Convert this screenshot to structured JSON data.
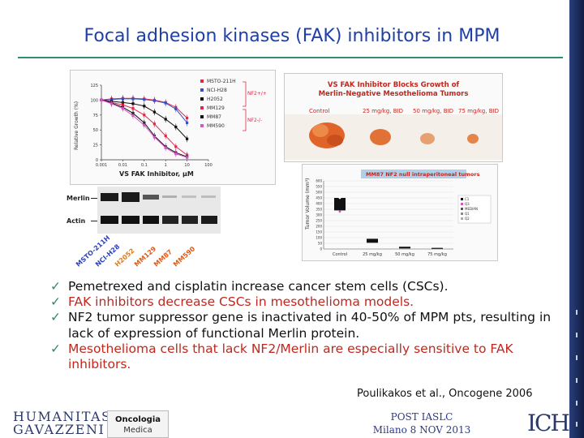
{
  "slide": {
    "title": "Focal adhesion kinases (FAK) inhibitors in MPM",
    "citation": "Poulikakos et al., Oncogene 2006"
  },
  "dose_response": {
    "y_axis_label": "Relative Growth (%)",
    "x_axis_label": "VS FAK Inhibitor, μM",
    "y_ticks": [
      "125",
      "100",
      "75",
      "50",
      "25",
      "0"
    ],
    "x_ticks": [
      "0.001",
      "0.01",
      "0.1",
      "1",
      "10",
      "100"
    ],
    "legend": [
      {
        "name": "MSTO-211H",
        "color": "#e0294a"
      },
      {
        "name": "NCI-H28",
        "color": "#3a4fc7"
      },
      {
        "name": "H2052",
        "color": "#111111"
      },
      {
        "name": "MM129",
        "color": "#e0294a"
      },
      {
        "name": "MM87",
        "color": "#111111"
      },
      {
        "name": "MM590",
        "color": "#d455c8"
      }
    ],
    "group_labels": [
      "NF2+/+",
      "NF2-/-"
    ]
  },
  "western_blot": {
    "rows": [
      "Merlin",
      "Actin"
    ],
    "lanes": [
      {
        "name": "MSTO-211H",
        "color": "#2b3fbf"
      },
      {
        "name": "NCI-H28",
        "color": "#2b3fbf"
      },
      {
        "name": "H2052",
        "color": "#e07a1a"
      },
      {
        "name": "MM129",
        "color": "#e05a14"
      },
      {
        "name": "MM87",
        "color": "#e05a14"
      },
      {
        "name": "MM590",
        "color": "#e05a14"
      }
    ]
  },
  "tumor_panel": {
    "title_line1": "VS FAK Inhibitor Blocks Growth of",
    "title_line2": "Merlin-Negative Mesothelioma Tumors",
    "groups": [
      "Control",
      "25 mg/kg, BID",
      "50 mg/kg, BID",
      "75 mg/kg, BID"
    ]
  },
  "tumor_chart": {
    "title": "MM87 NF2 null intraperitoneal tumors",
    "y_axis_label": "Tumor Volume (mm³)",
    "y_ticks": [
      "600",
      "550",
      "500",
      "450",
      "400",
      "350",
      "300",
      "250",
      "200",
      "150",
      "100",
      "50",
      "0"
    ],
    "categories": [
      "Control",
      "25 mg/kg",
      "50 mg/kg",
      "75 mg/kg"
    ],
    "legend": [
      "C1",
      "Q3",
      "MEDIAN",
      "Q1",
      "Q2"
    ]
  },
  "chart_data": [
    {
      "type": "line",
      "title": "",
      "xlabel": "VS FAK Inhibitor, μM",
      "ylabel": "Relative Growth (%)",
      "x_scale": "log",
      "xlim": [
        0.001,
        100
      ],
      "ylim": [
        0,
        125
      ],
      "x": [
        0.001,
        0.003,
        0.01,
        0.03,
        0.1,
        0.3,
        1,
        3,
        10
      ],
      "series": [
        {
          "name": "MSTO-211H",
          "color": "#e0294a",
          "values": [
            100,
            102,
            103,
            103,
            102,
            100,
            96,
            88,
            70
          ]
        },
        {
          "name": "NCI-H28",
          "color": "#3a4fc7",
          "values": [
            100,
            101,
            102,
            102,
            101,
            99,
            95,
            85,
            62
          ]
        },
        {
          "name": "H2052",
          "color": "#111111",
          "values": [
            100,
            98,
            96,
            94,
            90,
            80,
            68,
            55,
            35
          ]
        },
        {
          "name": "MM129",
          "color": "#e0294a",
          "values": [
            100,
            96,
            92,
            86,
            75,
            60,
            40,
            22,
            8
          ]
        },
        {
          "name": "MM87",
          "color": "#111111",
          "values": [
            100,
            95,
            88,
            78,
            62,
            40,
            22,
            12,
            5
          ]
        },
        {
          "name": "MM590",
          "color": "#d455c8",
          "values": [
            100,
            94,
            86,
            74,
            58,
            38,
            20,
            10,
            4
          ]
        }
      ]
    },
    {
      "type": "bar",
      "title": "MM87 NF2 null intraperitoneal tumors",
      "xlabel": "",
      "ylabel": "Tumor Volume (mm³)",
      "ylim": [
        0,
        600
      ],
      "categories": [
        "Control",
        "25 mg/kg",
        "50 mg/kg",
        "75 mg/kg"
      ],
      "series": [
        {
          "name": "Q1",
          "values": [
            340,
            55,
            5,
            3
          ]
        },
        {
          "name": "Q3",
          "values": [
            450,
            90,
            20,
            10
          ]
        }
      ]
    }
  ],
  "bullets": [
    {
      "color": "black",
      "text": "Pemetrexed and cisplatin increase cancer stem cells (CSCs)."
    },
    {
      "color": "red",
      "text": "FAK inhibitors decrease CSCs in mesothelioma models."
    },
    {
      "color": "black",
      "text": "NF2 tumor suppressor gene is inactivated in 40-50% of MPM pts, resulting in lack of expression of functional Merlin protein."
    },
    {
      "color": "red",
      "text": "Mesothelioma cells that lack NF2/Merlin are especially sensitive to FAK inhibitors."
    }
  ],
  "footer": {
    "logo_line1": "HUMANITAS",
    "logo_line2": "GAVAZZENI",
    "onco_line1": "Oncologia",
    "onco_line2": "Medica",
    "post_line1": "POST IASLC",
    "post_line2": "Milano 8 NOV 2013",
    "right_logo": "ICH"
  }
}
